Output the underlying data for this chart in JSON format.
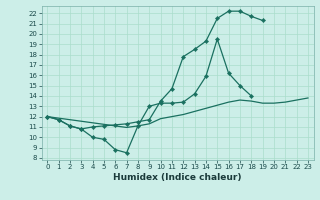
{
  "xlabel": "Humidex (Indice chaleur)",
  "bg_color": "#cceee8",
  "line_color": "#1a7060",
  "grid_color": "#aaddcc",
  "xlim": [
    -0.5,
    23.5
  ],
  "ylim": [
    7.8,
    22.7
  ],
  "xticks": [
    0,
    1,
    2,
    3,
    4,
    5,
    6,
    7,
    8,
    9,
    10,
    11,
    12,
    13,
    14,
    15,
    16,
    17,
    18,
    19,
    20,
    21,
    22,
    23
  ],
  "yticks": [
    8,
    9,
    10,
    11,
    12,
    13,
    14,
    15,
    16,
    17,
    18,
    19,
    20,
    21,
    22
  ],
  "curve1_x": [
    0,
    1,
    2,
    3,
    4,
    5,
    6,
    7,
    8,
    9,
    10,
    11,
    12,
    13,
    14,
    15,
    16,
    17,
    18
  ],
  "curve1_y": [
    12.0,
    11.7,
    11.1,
    10.8,
    10.0,
    9.8,
    8.8,
    8.5,
    11.1,
    13.0,
    13.3,
    13.3,
    13.4,
    14.2,
    15.9,
    19.5,
    16.2,
    15.0,
    14.0
  ],
  "curve2_x": [
    0,
    1,
    2,
    3,
    4,
    5,
    6,
    7,
    8,
    9,
    10,
    11,
    12,
    13,
    14,
    15,
    16,
    17,
    18,
    19
  ],
  "curve2_y": [
    12.0,
    11.7,
    11.1,
    10.8,
    11.0,
    11.1,
    11.2,
    11.3,
    11.5,
    11.7,
    13.5,
    14.7,
    17.8,
    18.5,
    19.3,
    21.5,
    22.2,
    22.2,
    21.7,
    21.3
  ],
  "curve3_x": [
    0,
    1,
    2,
    3,
    4,
    5,
    6,
    7,
    8,
    9,
    10,
    11,
    12,
    13,
    14,
    15,
    16,
    17,
    18,
    19,
    20,
    21,
    22,
    23
  ],
  "curve3_y": [
    12.0,
    11.85,
    11.7,
    11.55,
    11.4,
    11.25,
    11.1,
    10.95,
    11.1,
    11.3,
    11.8,
    12.0,
    12.2,
    12.5,
    12.8,
    13.1,
    13.4,
    13.6,
    13.5,
    13.3,
    13.3,
    13.4,
    13.6,
    13.8
  ]
}
